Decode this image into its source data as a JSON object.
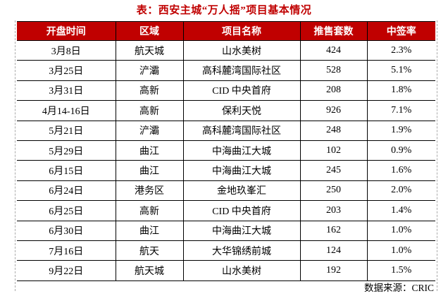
{
  "title": "表：西安主城“万人摇”项目基本情况",
  "colors": {
    "header_bg": "#c00000",
    "title_text": "#c00000",
    "border": "#000000",
    "page_break_dash": "#aaaaaa"
  },
  "table": {
    "columns": [
      "开盘时间",
      "区域",
      "项目名称",
      "推售套数",
      "中签率"
    ],
    "rows": [
      [
        "3月8日",
        "航天城",
        "山水美树",
        "424",
        "2.3%"
      ],
      [
        "3月25日",
        "浐灞",
        "高科麓湾国际社区",
        "528",
        "5.1%"
      ],
      [
        "3月31日",
        "高新",
        "CID 中央首府",
        "208",
        "1.8%"
      ],
      [
        "4月14-16日",
        "高新",
        "保利天悦",
        "926",
        "7.1%"
      ],
      [
        "5月21日",
        "浐灞",
        "高科麓湾国际社区",
        "248",
        "1.9%"
      ],
      [
        "5月29日",
        "曲江",
        "中海曲江大城",
        "102",
        "0.9%"
      ],
      [
        "6月15日",
        "曲江",
        "中海曲江大城",
        "245",
        "1.6%"
      ],
      [
        "6月24日",
        "港务区",
        "金地玖峯汇",
        "250",
        "2.0%"
      ],
      [
        "6月25日",
        "高新",
        "CID 中央首府",
        "203",
        "1.4%"
      ],
      [
        "6月30日",
        "曲江",
        "中海曲江大城",
        "162",
        "1.0%"
      ],
      [
        "7月16日",
        "航天",
        "大华锦绣前城",
        "124",
        "1.0%"
      ],
      [
        "9月22日",
        "航天城",
        "山水美树",
        "192",
        "1.5%"
      ]
    ]
  },
  "footer": {
    "source": "数据来源：CRIC"
  },
  "chart_data": {
    "type": "table",
    "title": "表：西安主城“万人摇”项目基本情况",
    "columns": [
      "开盘时间",
      "区域",
      "项目名称",
      "推售套数",
      "中签率"
    ],
    "rows": [
      [
        "3月8日",
        "航天城",
        "山水美树",
        424,
        "2.3%"
      ],
      [
        "3月25日",
        "浐灞",
        "高科麓湾国际社区",
        528,
        "5.1%"
      ],
      [
        "3月31日",
        "高新",
        "CID 中央首府",
        208,
        "1.8%"
      ],
      [
        "4月14-16日",
        "高新",
        "保利天悦",
        926,
        "7.1%"
      ],
      [
        "5月21日",
        "浐灞",
        "高科麓湾国际社区",
        248,
        "1.9%"
      ],
      [
        "5月29日",
        "曲江",
        "中海曲江大城",
        102,
        "0.9%"
      ],
      [
        "6月15日",
        "曲江",
        "中海曲江大城",
        245,
        "1.6%"
      ],
      [
        "6月24日",
        "港务区",
        "金地玖峯汇",
        250,
        "2.0%"
      ],
      [
        "6月25日",
        "高新",
        "CID 中央首府",
        203,
        "1.4%"
      ],
      [
        "6月30日",
        "曲江",
        "中海曲江大城",
        162,
        "1.0%"
      ],
      [
        "7月16日",
        "航天",
        "大华锦绣前城",
        124,
        "1.0%"
      ],
      [
        "9月22日",
        "航天城",
        "山水美树",
        192,
        "1.5%"
      ]
    ],
    "source": "数据来源：CRIC"
  }
}
